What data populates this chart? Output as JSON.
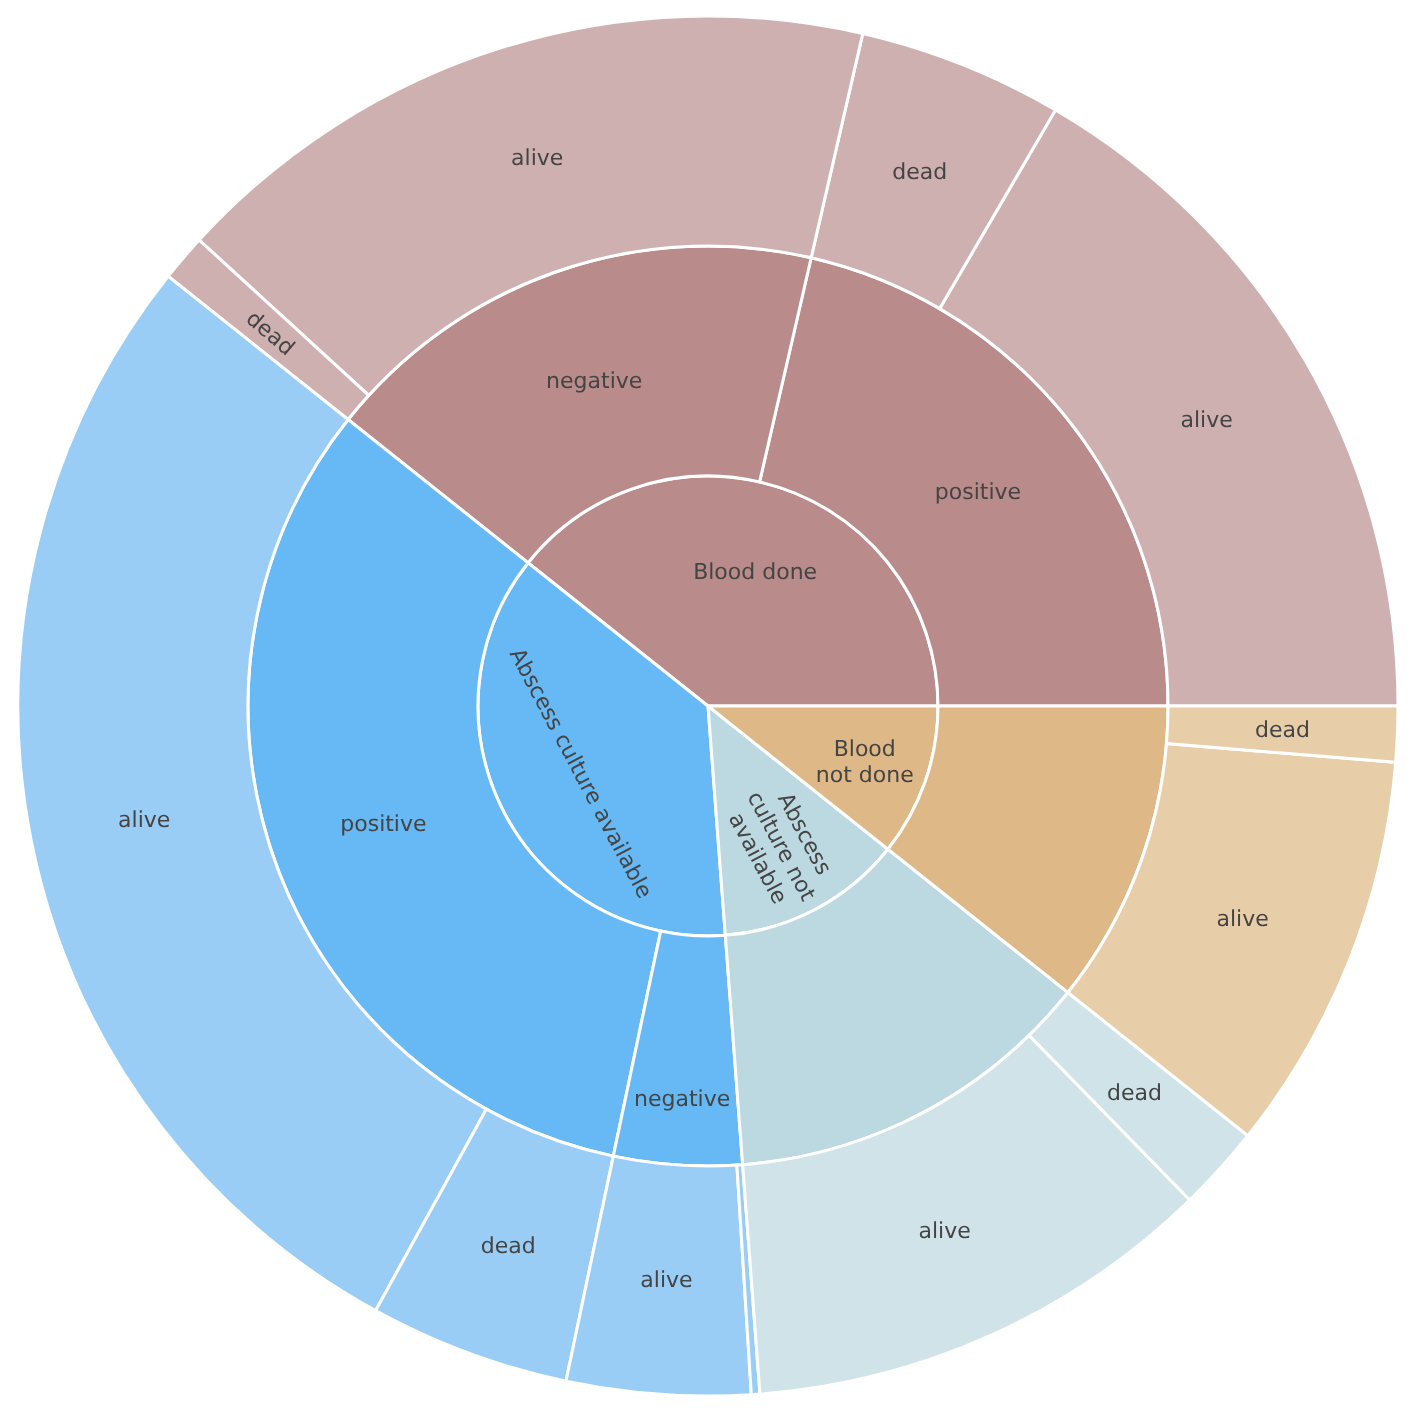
{
  "chart_data": [
    {
      "type": "pie",
      "categories": [
        "Blood done",
        "Abscess culture available",
        "Abscess culture not available",
        "Blood not done"
      ],
      "values": [
        39.3,
        36.9,
        13.1,
        10.7
      ],
      "colors": [
        "#b98b8b",
        "#66b9f5",
        "#bcd8e0",
        "#deb887"
      ]
    },
    {
      "type": "donut",
      "categories": [
        "positive",
        "negative",
        "positive",
        "negative",
        null,
        null
      ],
      "values": [
        21.4,
        17.9,
        32.4,
        4.5,
        13.1,
        10.7
      ],
      "colors": [
        "#b98b8b",
        "#b98b8b",
        "#66b9f5",
        "#66b9f5",
        "#bcd8e0",
        "#deb887"
      ]
    },
    {
      "type": "donut",
      "categories": [
        "alive",
        "dead",
        "alive",
        "dead",
        "alive",
        "dead",
        "alive",
        null,
        "alive",
        "dead",
        "alive",
        "dead"
      ],
      "values": [
        16.6,
        4.8,
        16.8,
        1.1,
        27.7,
        4.7,
        4.3,
        0.2,
        11.1,
        2.0,
        9.4,
        1.3
      ],
      "colors": [
        "#cfb0b1",
        "#cfb0b1",
        "#cfb0b1",
        "#cfb0b1",
        "#99cdf6",
        "#99cdf6",
        "#99cdf6",
        "#99cdf6",
        "#d0e3e8",
        "#d0e3e8",
        "#e8cda9",
        "#e8cda9"
      ]
    }
  ]
}
